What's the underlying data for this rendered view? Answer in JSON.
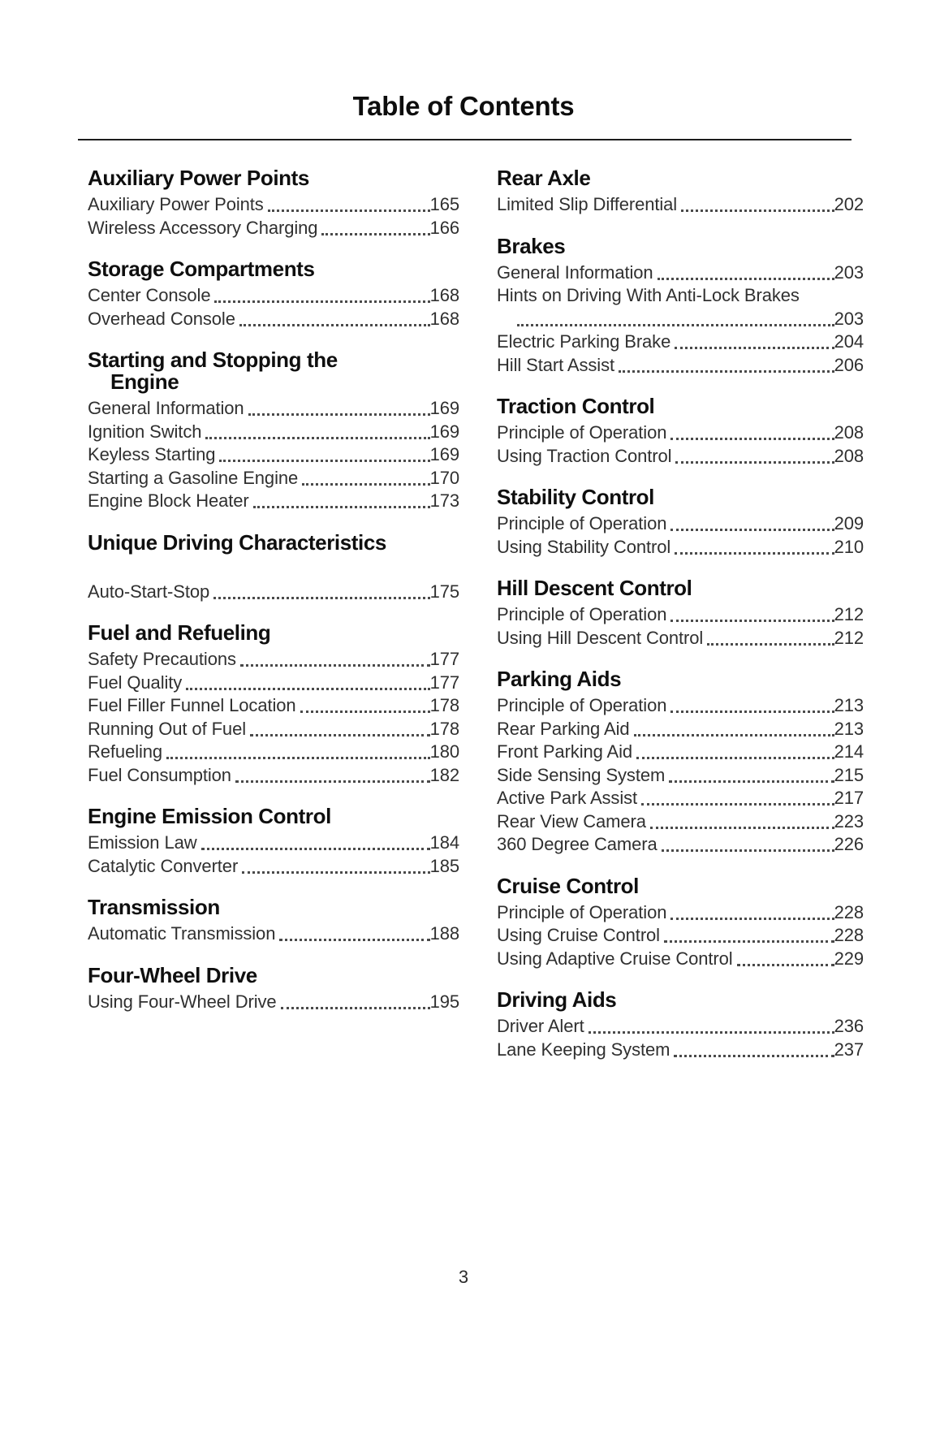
{
  "page": {
    "title": "Table of Contents",
    "page_number": "3"
  },
  "columns": {
    "left": [
      {
        "heading_lines": [
          "Auxiliary Power Points"
        ],
        "entries": [
          {
            "label": "Auxiliary Power Points",
            "page": "165"
          },
          {
            "label": "Wireless Accessory Charging",
            "page": "166"
          }
        ]
      },
      {
        "heading_lines": [
          "Storage Compartments"
        ],
        "entries": [
          {
            "label": "Center Console",
            "page": "168"
          },
          {
            "label": "Overhead Console",
            "page": "168"
          }
        ]
      },
      {
        "heading_lines": [
          "Starting and Stopping the",
          "Engine"
        ],
        "entries": [
          {
            "label": "General Information",
            "page": "169"
          },
          {
            "label": "Ignition Switch",
            "page": "169"
          },
          {
            "label": "Keyless Starting",
            "page": "169"
          },
          {
            "label": "Starting a Gasoline Engine",
            "page": "170"
          },
          {
            "label": "Engine Block Heater",
            "page": "173"
          }
        ]
      },
      {
        "heading_lines": [
          "Unique Driving Characteristics"
        ],
        "extra_gap": true,
        "entries": [
          {
            "label": "Auto-Start-Stop",
            "page": "175"
          }
        ]
      },
      {
        "heading_lines": [
          "Fuel and Refueling"
        ],
        "entries": [
          {
            "label": "Safety Precautions",
            "page": "177"
          },
          {
            "label": "Fuel Quality",
            "page": "177"
          },
          {
            "label": "Fuel Filler Funnel Location",
            "page": "178"
          },
          {
            "label": "Running Out of Fuel",
            "page": "178"
          },
          {
            "label": "Refueling",
            "page": "180"
          },
          {
            "label": "Fuel Consumption",
            "page": "182"
          }
        ]
      },
      {
        "heading_lines": [
          "Engine Emission Control"
        ],
        "entries": [
          {
            "label": "Emission Law",
            "page": "184"
          },
          {
            "label": "Catalytic Converter",
            "page": "185"
          }
        ]
      },
      {
        "heading_lines": [
          "Transmission"
        ],
        "entries": [
          {
            "label": "Automatic Transmission",
            "page": "188"
          }
        ]
      },
      {
        "heading_lines": [
          "Four-Wheel Drive"
        ],
        "entries": [
          {
            "label": "Using Four-Wheel Drive",
            "page": "195"
          }
        ]
      }
    ],
    "right": [
      {
        "heading_lines": [
          "Rear Axle"
        ],
        "entries": [
          {
            "label": "Limited Slip Differential",
            "page": "202"
          }
        ]
      },
      {
        "heading_lines": [
          "Brakes"
        ],
        "entries": [
          {
            "label": "General Information",
            "page": "203"
          },
          {
            "label": "Hints on Driving With Anti-Lock Brakes",
            "page": "203",
            "wrap": true
          },
          {
            "label": "Electric Parking Brake",
            "page": "204"
          },
          {
            "label": "Hill Start Assist",
            "page": "206"
          }
        ]
      },
      {
        "heading_lines": [
          "Traction Control"
        ],
        "entries": [
          {
            "label": "Principle of Operation",
            "page": "208"
          },
          {
            "label": "Using Traction Control",
            "page": "208"
          }
        ]
      },
      {
        "heading_lines": [
          "Stability Control"
        ],
        "entries": [
          {
            "label": "Principle of Operation",
            "page": "209"
          },
          {
            "label": "Using Stability Control",
            "page": "210"
          }
        ]
      },
      {
        "heading_lines": [
          "Hill Descent Control"
        ],
        "entries": [
          {
            "label": "Principle of Operation",
            "page": "212"
          },
          {
            "label": "Using Hill Descent Control",
            "page": "212"
          }
        ]
      },
      {
        "heading_lines": [
          "Parking Aids"
        ],
        "entries": [
          {
            "label": "Principle of Operation",
            "page": "213"
          },
          {
            "label": "Rear Parking Aid",
            "page": "213"
          },
          {
            "label": "Front Parking Aid",
            "page": "214"
          },
          {
            "label": "Side Sensing System",
            "page": "215"
          },
          {
            "label": "Active Park Assist",
            "page": "217"
          },
          {
            "label": "Rear View Camera",
            "page": "223"
          },
          {
            "label": "360 Degree Camera",
            "page": "226"
          }
        ]
      },
      {
        "heading_lines": [
          "Cruise Control"
        ],
        "entries": [
          {
            "label": "Principle of Operation",
            "page": "228"
          },
          {
            "label": "Using Cruise Control",
            "page": "228"
          },
          {
            "label": "Using Adaptive Cruise Control",
            "page": "229"
          }
        ]
      },
      {
        "heading_lines": [
          "Driving Aids"
        ],
        "entries": [
          {
            "label": "Driver Alert",
            "page": "236"
          },
          {
            "label": "Lane Keeping System",
            "page": "237"
          }
        ]
      }
    ]
  }
}
